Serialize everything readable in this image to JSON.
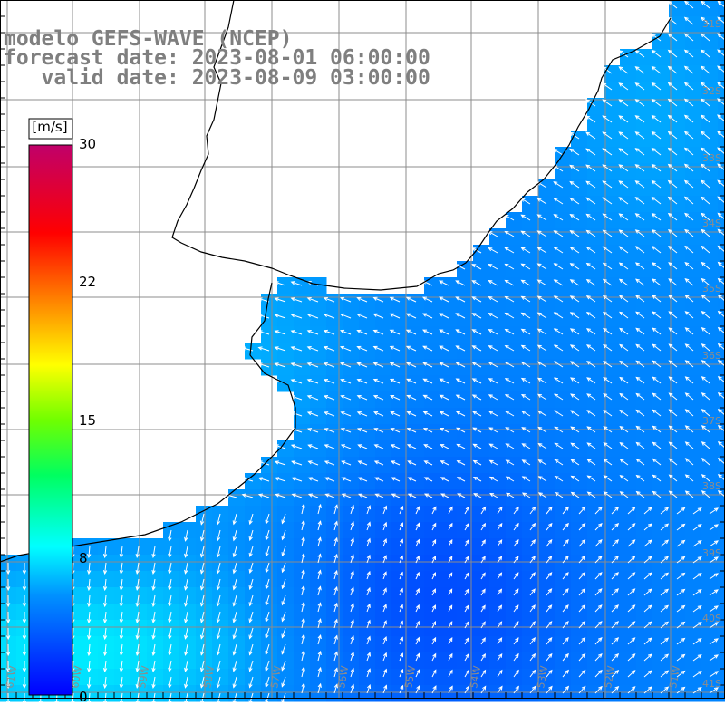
{
  "header": {
    "line1": "modelo GEFS-WAVE (NCEP)",
    "line2": "forecast date: 2023-08-01 06:00:00",
    "line3": "   valid date: 2023-08-09 03:00:00"
  },
  "colorbar": {
    "unit": "[m/s]",
    "ticks": [
      "30",
      "22",
      "15",
      "8",
      "0"
    ],
    "min": 0,
    "max": 30,
    "colors": [
      "#0000ff",
      "#0090ff",
      "#00ffff",
      "#00ff60",
      "#70ff00",
      "#ffff00",
      "#ff8000",
      "#ff0000",
      "#c0006a"
    ]
  },
  "map": {
    "land_color": "#ffffff",
    "coastline_color": "#000000",
    "grid_color": "#8c8c8c",
    "arrow_color": "#ffffff",
    "lat_labels": [
      "31S",
      "32S",
      "33S",
      "34S",
      "35S",
      "36S",
      "37S",
      "38S",
      "39S",
      "40S",
      "41S"
    ],
    "lon_labels": [
      "61W",
      "60W",
      "59W",
      "58W",
      "57W",
      "56W",
      "55W",
      "54W",
      "53W",
      "52W",
      "51W"
    ]
  }
}
